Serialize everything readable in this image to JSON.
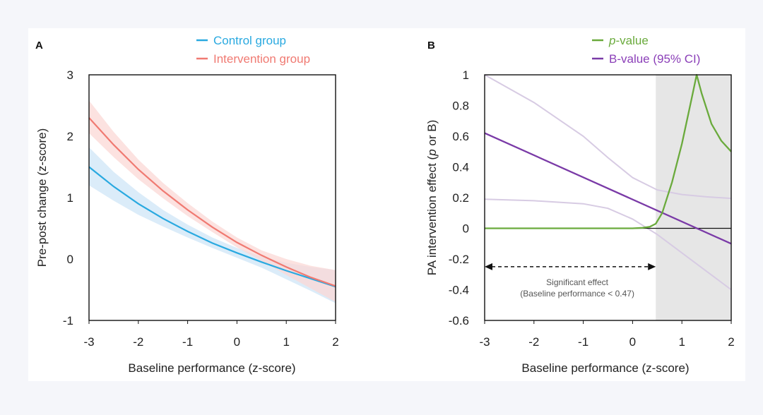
{
  "chart_data": [
    {
      "panel": "A",
      "type": "line",
      "xlabel": "Baseline performance  (z-score)",
      "ylabel": "Pre-post  change  (z-score)",
      "xlim": [
        -3,
        2
      ],
      "ylim": [
        -1,
        3
      ],
      "xticks": [
        "-3",
        "-2",
        "-1",
        "0",
        "1",
        "2"
      ],
      "yticks": [
        "3",
        "2",
        "1",
        "0",
        "-1"
      ],
      "legend_position": "top",
      "series": [
        {
          "name": "Control  group",
          "color": "#29a9e0",
          "band_color": "#cfe6f7",
          "x": [
            -3,
            -2.5,
            -2,
            -1.5,
            -1,
            -0.5,
            0,
            0.5,
            1,
            1.5,
            2
          ],
          "y": [
            1.5,
            1.18,
            0.9,
            0.66,
            0.45,
            0.26,
            0.1,
            -0.05,
            -0.19,
            -0.32,
            -0.45
          ],
          "lower": [
            1.2,
            0.95,
            0.72,
            0.53,
            0.35,
            0.18,
            0.02,
            -0.14,
            -0.33,
            -0.52,
            -0.72
          ],
          "upper": [
            1.82,
            1.42,
            1.09,
            0.8,
            0.56,
            0.35,
            0.18,
            0.04,
            -0.06,
            -0.13,
            -0.18
          ]
        },
        {
          "name": "Intervention  group",
          "color": "#f07a72",
          "band_color": "#fbd8d6",
          "x": [
            -3,
            -2.5,
            -2,
            -1.5,
            -1,
            -0.5,
            0,
            0.5,
            1,
            1.5,
            2
          ],
          "y": [
            2.3,
            1.86,
            1.46,
            1.11,
            0.8,
            0.52,
            0.27,
            0.06,
            -0.13,
            -0.3,
            -0.44
          ],
          "lower": [
            2.05,
            1.66,
            1.3,
            0.99,
            0.7,
            0.44,
            0.19,
            -0.03,
            -0.26,
            -0.48,
            -0.7
          ],
          "upper": [
            2.58,
            2.07,
            1.62,
            1.24,
            0.91,
            0.61,
            0.35,
            0.14,
            0.0,
            -0.11,
            -0.18
          ]
        }
      ]
    },
    {
      "panel": "B",
      "type": "line",
      "xlabel": "Baseline performance  (z-score)",
      "ylabel_parts": [
        "PA intervention  effect  (",
        "p",
        " or B)"
      ],
      "xlim": [
        -3,
        2
      ],
      "ylim": [
        -0.6,
        1
      ],
      "xticks": [
        "-3",
        "-2",
        "-1",
        "0",
        "1",
        "2"
      ],
      "yticks": [
        "1",
        "0.8",
        "0.6",
        "0.4",
        "0.2",
        "0",
        "-0.2",
        "-0.4",
        "-0.6"
      ],
      "legend_position": "top",
      "shaded_region": {
        "from": 0.47,
        "to": 2,
        "color": "#e6e6e6"
      },
      "series": [
        {
          "name_parts": [
            "p",
            "-value"
          ],
          "color": "#6aaa3c",
          "x": [
            -3,
            -2,
            -1,
            0,
            0.2,
            0.35,
            0.47,
            0.6,
            0.8,
            1.0,
            1.2,
            1.3,
            1.4,
            1.6,
            1.8,
            2.0
          ],
          "y": [
            0.0,
            0.0,
            0.0,
            0.0,
            0.003,
            0.01,
            0.03,
            0.1,
            0.3,
            0.55,
            0.85,
            1.0,
            0.88,
            0.68,
            0.57,
            0.5
          ]
        },
        {
          "name": "B-value (95% CI)",
          "color": "#7a3aa7",
          "x": [
            -3,
            2
          ],
          "y": [
            0.62,
            -0.1
          ]
        },
        {
          "name": "",
          "color": "#d7cbe3",
          "x": [
            -3,
            -2,
            -1,
            -0.5,
            0,
            0.5,
            1,
            1.5,
            2
          ],
          "y": [
            1.0,
            0.82,
            0.6,
            0.46,
            0.33,
            0.25,
            0.22,
            0.205,
            0.195
          ]
        },
        {
          "name": "",
          "color": "#d7cbe3",
          "x": [
            -3,
            -2,
            -1,
            -0.5,
            0,
            0.5,
            1,
            1.5,
            2
          ],
          "y": [
            0.19,
            0.18,
            0.16,
            0.13,
            0.06,
            -0.04,
            -0.16,
            -0.28,
            -0.4
          ]
        }
      ],
      "zero_line": true,
      "annotation": {
        "arrow_from": -3,
        "arrow_to": 0.47,
        "arrow_y": -0.25,
        "text_line1": "Significant  effect",
        "text_line2": "(Baseline performance < 0.47)"
      }
    }
  ]
}
